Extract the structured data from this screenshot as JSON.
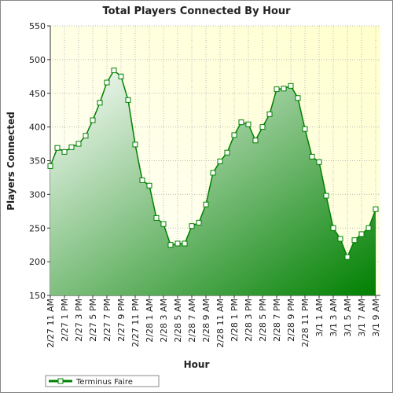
{
  "chart_data": {
    "type": "area",
    "title": "Total Players Connected By Hour",
    "x_label": "Hour",
    "y_label": "Players Connected",
    "categories": [
      "2/27 11 AM",
      null,
      "2/27 1 PM",
      null,
      "2/27 3 PM",
      null,
      "2/27 5 PM",
      null,
      "2/27 7 PM",
      null,
      "2/27 9 PM",
      null,
      "2/27 11 PM",
      null,
      "2/28 1 AM",
      null,
      "2/28 3 AM",
      null,
      "2/28 5 AM",
      null,
      "2/28 7 AM",
      null,
      "2/28 9 AM",
      null,
      "2/28 11 AM",
      null,
      "2/28 1 PM",
      null,
      "2/28 3 PM",
      null,
      "2/28 5 PM",
      null,
      "2/28 7 PM",
      null,
      "2/28 9 PM",
      null,
      "2/28 11 PM",
      null,
      "3/1 1 AM",
      null,
      "3/1 3 AM",
      null,
      "3/1 5 AM",
      null,
      "3/1 7 AM",
      null,
      "3/1 9 AM"
    ],
    "series": [
      {
        "name": "Terminus Faire",
        "color": "#008000",
        "values": [
          342,
          369,
          363,
          370,
          375,
          387,
          410,
          436,
          466,
          484,
          475,
          440,
          374,
          321,
          313,
          265,
          256,
          225,
          227,
          227,
          253,
          258,
          285,
          332,
          349,
          362,
          388,
          407,
          404,
          380,
          400,
          419,
          456,
          457,
          461,
          443,
          397,
          356,
          348,
          298,
          250,
          234,
          207,
          232,
          241,
          250,
          278
        ]
      }
    ],
    "ylim": [
      150,
      550
    ],
    "yticks": [
      150,
      200,
      250,
      300,
      350,
      400,
      450,
      500,
      550
    ],
    "grid": true,
    "legend": "bottom-left"
  }
}
